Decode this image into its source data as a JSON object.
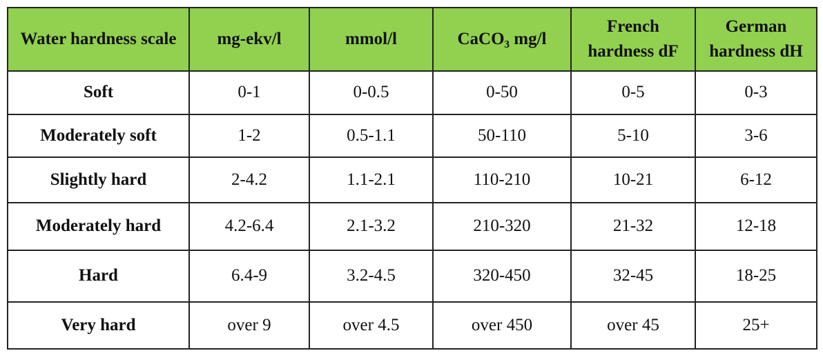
{
  "table": {
    "header": [
      "Water hardness scale",
      "mg-ekv/l",
      "mmol/l",
      "CaCO₃ mg/l",
      "French hardness dF",
      "German hardness dH"
    ],
    "rows": [
      [
        "Soft",
        "0-1",
        "0-0.5",
        "0-50",
        "0-5",
        "0-3"
      ],
      [
        "Moderately soft",
        "1-2",
        "0.5-1.1",
        "50-110",
        "5-10",
        "3-6"
      ],
      [
        "Slightly hard",
        "2-4.2",
        "1.1-2.1",
        "110-210",
        "10-21",
        "6-12"
      ],
      [
        "Moderately hard",
        "4.2-6.4",
        "2.1-3.2",
        "210-320",
        "21-32",
        "12-18"
      ],
      [
        "Hard",
        "6.4-9",
        "3.2-4.5",
        "320-450",
        "32-45",
        "18-25"
      ],
      [
        "Very hard",
        "over 9",
        "over 4.5",
        "over 450",
        "over 45",
        "25+"
      ]
    ]
  }
}
